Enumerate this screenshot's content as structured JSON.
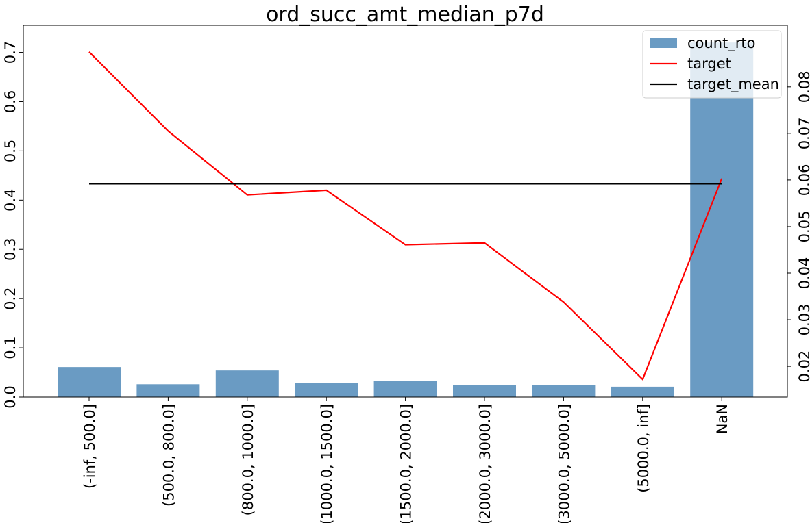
{
  "chart_data": {
    "type": "bar",
    "title": "ord_succ_amt_median_p7d",
    "categories": [
      "(-inf, 500.0]",
      "(500.0, 800.0]",
      "(800.0, 1000.0]",
      "(1000.0, 1500.0]",
      "(1500.0, 2000.0]",
      "(2000.0, 3000.0]",
      "(3000.0, 5000.0]",
      "(5000.0, inf]",
      "NaN"
    ],
    "bar_series": {
      "name": "count_rto",
      "color": "#6a9bc3",
      "values": [
        0.061,
        0.026,
        0.054,
        0.029,
        0.033,
        0.025,
        0.025,
        0.021,
        0.72
      ]
    },
    "line_series": [
      {
        "name": "target",
        "color": "#ff0000",
        "axis": "right",
        "values": [
          0.0875,
          0.0705,
          0.0568,
          0.0578,
          0.0461,
          0.0465,
          0.0338,
          0.0172,
          0.0603
        ]
      },
      {
        "name": "target_mean",
        "color": "#000000",
        "axis": "right",
        "values": [
          0.0592,
          0.0592,
          0.0592,
          0.0592,
          0.0592,
          0.0592,
          0.0592,
          0.0592,
          0.0592
        ]
      }
    ],
    "y_left": {
      "lim": [
        0,
        0.755
      ],
      "ticks": [
        0,
        0.1,
        0.2,
        0.3,
        0.4,
        0.5,
        0.6,
        0.7
      ],
      "tick_labels": [
        "0.0",
        "0.1",
        "0.2",
        "0.3",
        "0.4",
        "0.5",
        "0.6",
        "0.7"
      ]
    },
    "y_right": {
      "lim": [
        0.0134,
        0.0932
      ],
      "ticks": [
        0.02,
        0.03,
        0.04,
        0.05,
        0.06,
        0.07,
        0.08
      ],
      "tick_labels": [
        "0.02",
        "0.03",
        "0.04",
        "0.05",
        "0.06",
        "0.07",
        "0.08"
      ]
    },
    "legend": {
      "placement": "top-right",
      "entries": [
        "count_rto",
        "target",
        "target_mean"
      ]
    },
    "grid": false
  }
}
